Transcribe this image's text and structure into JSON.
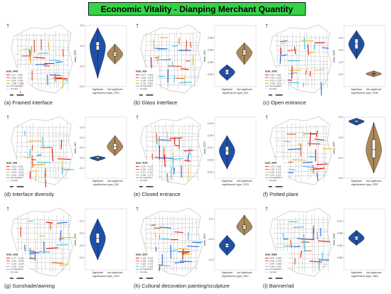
{
  "title": "Economic Vitality - Dianping Merchant Quantity",
  "colors": {
    "blue": "#1f50a8",
    "tan": "#ab8a5a",
    "road": "#c8c8c8",
    "c1": "#2f6fd6",
    "c2": "#47c4e6",
    "c3": "#e8c23a",
    "c4": "#e45b2b",
    "c5": "#e01d1d"
  },
  "chart_data": [
    {
      "type": "violin",
      "caption": "(a) Framed interface",
      "ylabel": "beta_SFD",
      "xlabel": "significance type_SFD",
      "categories": [
        "Significant",
        "Not significant"
      ],
      "ylim": [
        -0.2,
        0.4
      ],
      "ticks": [
        "0.4",
        "0.2",
        "0.0",
        "-0.2"
      ],
      "legend_title": "beta_SFD",
      "legend_items": [
        "0.217 - 0.366",
        "0.065 - 0.216",
        "-0.087 - 0.064",
        "-0.238 - -0.088",
        "Not significant",
        "No data"
      ],
      "series": [
        {
          "name": "Significant",
          "color": "blue",
          "min": -0.12,
          "max": 0.38,
          "q1": 0.16,
          "median": 0.2,
          "q3": 0.24
        },
        {
          "name": "Not significant",
          "color": "tan",
          "min": 0.02,
          "max": 0.22,
          "q1": 0.1,
          "median": 0.12,
          "q3": 0.14
        }
      ]
    },
    {
      "type": "violin",
      "caption": "(b) Glass interface",
      "ylabel": "beta_SGI",
      "xlabel": "significance type_SGI",
      "categories": [
        "Significant",
        "Not significant"
      ],
      "ylim": [
        -0.15,
        0.1
      ],
      "ticks": [
        "0.05",
        "0.00",
        "-0.05",
        "-0.10"
      ],
      "legend_title": "beta_SGI",
      "legend_items": [
        "-0.077 - -0.060",
        "-0.093 - -0.078",
        "-0.109 - -0.094",
        "-0.125 - -0.110",
        "Not significant",
        "No data"
      ],
      "series": [
        {
          "name": "Significant",
          "color": "blue",
          "min": -0.125,
          "max": -0.06,
          "q1": -0.1,
          "median": -0.09,
          "q3": -0.08
        },
        {
          "name": "Not significant",
          "color": "tan",
          "min": -0.06,
          "max": 0.03,
          "q1": -0.02,
          "median": -0.01,
          "q3": 0.0
        }
      ]
    },
    {
      "type": "violin",
      "caption": "(c) Open entrance",
      "ylabel": "beta_SOE",
      "xlabel": "significance type_SOE",
      "categories": [
        "Significant",
        "Not significant"
      ],
      "ylim": [
        -0.2,
        0.8
      ],
      "ticks": [
        "0.6",
        "0.4",
        "0.2",
        "0.0"
      ],
      "legend_title": "beta_SOE",
      "legend_items": [
        "0.426 - 0.634",
        "0.220 - 0.425",
        "0.013 - 0.219",
        "-0.195 - 0.012",
        "Not significant",
        "No data"
      ],
      "series": [
        {
          "name": "Significant",
          "color": "blue",
          "min": 0.25,
          "max": 0.72,
          "q1": 0.42,
          "median": 0.5,
          "q3": 0.58
        },
        {
          "name": "Not significant",
          "color": "tan",
          "min": -0.04,
          "max": 0.06,
          "q1": 0.0,
          "median": 0.01,
          "q3": 0.02
        }
      ]
    },
    {
      "type": "violin",
      "caption": "(d) Interface diversity",
      "ylabel": "beta_SDI",
      "xlabel": "significance type_SDI",
      "categories": [
        "Significant",
        "Not significant"
      ],
      "ylim": [
        -0.2,
        0.4
      ],
      "ticks": [
        "0.3",
        "0.2",
        "0.1",
        "0.0",
        "-0.1"
      ],
      "legend_title": "beta_SDI",
      "legend_items": [
        "-0.013 - 0.013",
        "-0.040 - -0.014",
        "-0.067 - -0.041",
        "-0.094 - -0.068",
        "Not significant",
        "No data"
      ],
      "series": [
        {
          "name": "Significant",
          "color": "blue",
          "min": -0.03,
          "max": 0.02,
          "q1": -0.01,
          "median": 0.0,
          "q3": 0.01
        },
        {
          "name": "Not significant",
          "color": "tan",
          "min": 0.02,
          "max": 0.22,
          "q1": 0.08,
          "median": 0.11,
          "q3": 0.14
        }
      ]
    },
    {
      "type": "violin",
      "caption": "(e) Closed entrance",
      "ylabel": "beta_SCS",
      "xlabel": "significance type_SCS",
      "categories": [
        "Significant",
        "Not significant"
      ],
      "ylim": [
        -0.22,
        -0.12
      ],
      "ticks": [
        "-0.13",
        "-0.15",
        "-0.17",
        "-0.19",
        "-0.21"
      ],
      "legend_title": "beta_SCS",
      "legend_items": [
        "-0.141 - -0.136",
        "-0.156 - -0.142",
        "-0.171 - -0.157",
        "-0.185 - -0.172",
        "Not significant",
        "No data"
      ],
      "series": [
        {
          "name": "Significant",
          "color": "blue",
          "min": -0.205,
          "max": -0.15,
          "q1": -0.182,
          "median": -0.175,
          "q3": -0.168
        }
      ]
    },
    {
      "type": "violin",
      "caption": "(f) Potted plant",
      "ylabel": "beta_SPP",
      "xlabel": "significance type_SPP",
      "categories": [
        "Significant",
        "Not significant"
      ],
      "ylim": [
        -0.4,
        0.2
      ],
      "ticks": [
        "0.2",
        "0.0",
        "-0.2",
        "-0.4"
      ],
      "legend_title": "beta_SPP",
      "legend_items": [
        "0.175 - 0.195",
        "0.154 - 0.174",
        "0.133 - 0.153",
        "0.112 - 0.132",
        "Not significant",
        "No data"
      ],
      "series": [
        {
          "name": "Significant",
          "color": "blue",
          "min": 0.12,
          "max": 0.19,
          "q1": 0.15,
          "median": 0.16,
          "q3": 0.17
        },
        {
          "name": "Not significant",
          "color": "tan",
          "min": -0.35,
          "max": 0.15,
          "q1": -0.2,
          "median": -0.12,
          "q3": -0.02
        }
      ]
    },
    {
      "type": "violin",
      "caption": "(g) Sunshade/awning",
      "ylabel": "beta_SSS",
      "xlabel": "significance type_SSS",
      "categories": [
        "Significant",
        "Not significant"
      ],
      "ylim": [
        -0.5,
        0.0
      ],
      "ticks": [
        "-0.1",
        "-0.2",
        "-0.3",
        "-0.4"
      ],
      "legend_title": "beta_SSS",
      "legend_items": [
        "-0.177 - -0.151",
        "-0.203 - -0.178",
        "-0.229 - -0.204",
        "-0.255 - -0.230",
        "Not significant",
        "No data"
      ],
      "series": [
        {
          "name": "Significant",
          "color": "blue",
          "min": -0.42,
          "max": -0.08,
          "q1": -0.28,
          "median": -0.24,
          "q3": -0.2
        }
      ]
    },
    {
      "type": "violin",
      "caption": "(h) Cultural decoration painting/sculpture",
      "ylabel": "beta_SDC",
      "xlabel": "significance type_SDC",
      "categories": [
        "Significant",
        "Not significant"
      ],
      "ylim": [
        -0.35,
        -0.05
      ],
      "ticks": [
        "-0.1",
        "-0.2",
        "-0.3"
      ],
      "legend_title": "beta_SDC",
      "legend_items": [
        "-0.155 - -0.141",
        "-0.169 - -0.156",
        "-0.183 - -0.170",
        "-0.197 - -0.184",
        "Not significant",
        "No data"
      ],
      "series": [
        {
          "name": "Significant",
          "color": "blue",
          "min": -0.28,
          "max": -0.18,
          "q1": -0.24,
          "median": -0.23,
          "q3": -0.22
        },
        {
          "name": "Not significant",
          "color": "tan",
          "min": -0.18,
          "max": -0.08,
          "q1": -0.15,
          "median": -0.14,
          "q3": -0.13
        }
      ]
    },
    {
      "type": "violin",
      "caption": "(i) Banner/ad",
      "ylabel": "beta_SBA",
      "xlabel": "significance type_SBA",
      "categories": [
        "Significant",
        "Not significant"
      ],
      "ylim": [
        -0.04,
        0.16
      ],
      "ticks": [
        "0.12",
        "0.08",
        "0.04",
        "0.00"
      ],
      "legend_title": "beta_SBA",
      "legend_items": [
        "0.073 - 0.085",
        "0.060 - 0.072",
        "0.047 - 0.059",
        "0.034 - 0.046",
        "Not significant",
        "No data"
      ],
      "series": [
        {
          "name": "Significant",
          "color": "blue",
          "min": 0.04,
          "max": 0.09,
          "q1": 0.058,
          "median": 0.064,
          "q3": 0.07
        }
      ]
    }
  ]
}
